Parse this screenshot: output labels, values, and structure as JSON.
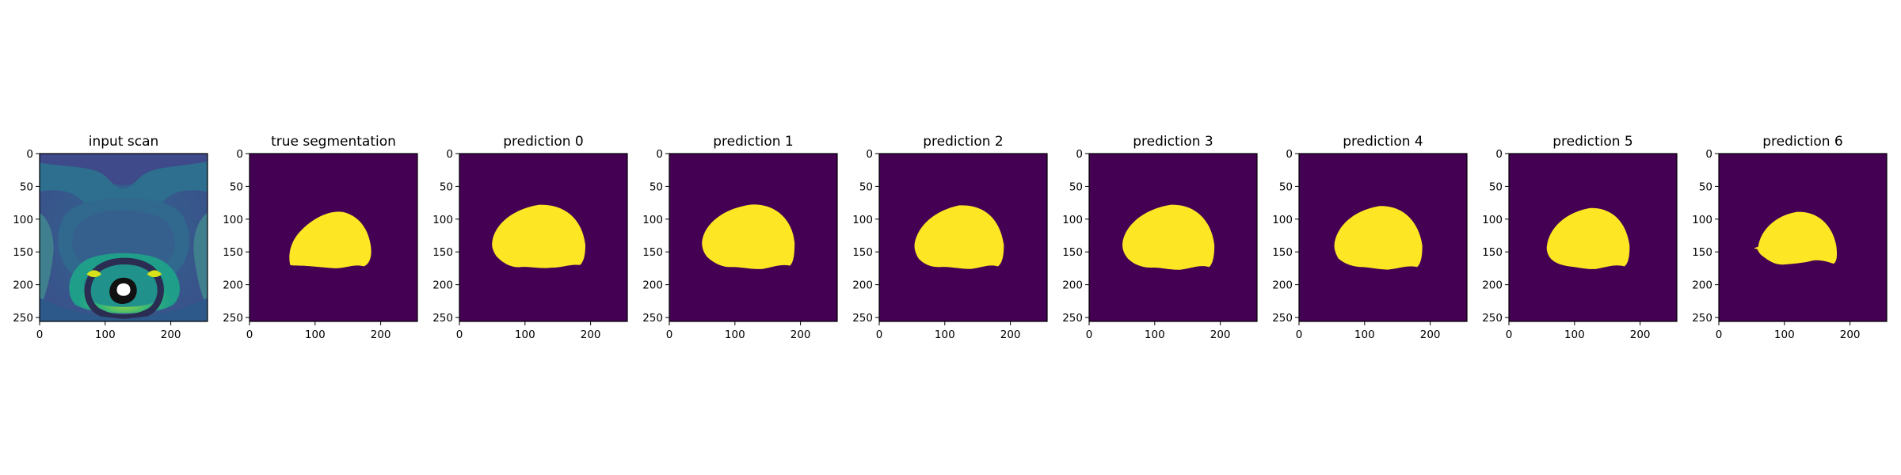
{
  "figure": {
    "panels": [
      {
        "id": "input",
        "title": "input scan",
        "kind": "scan"
      },
      {
        "id": "truth",
        "title": "true segmentation",
        "kind": "mask",
        "variant": 0
      },
      {
        "id": "p0",
        "title": "prediction 0",
        "kind": "mask",
        "variant": 1
      },
      {
        "id": "p1",
        "title": "prediction 1",
        "kind": "mask",
        "variant": 2
      },
      {
        "id": "p2",
        "title": "prediction 2",
        "kind": "mask",
        "variant": 3
      },
      {
        "id": "p3",
        "title": "prediction 3",
        "kind": "mask",
        "variant": 4
      },
      {
        "id": "p4",
        "title": "prediction 4",
        "kind": "mask",
        "variant": 5
      },
      {
        "id": "p5",
        "title": "prediction 5",
        "kind": "mask",
        "variant": 6
      },
      {
        "id": "p6",
        "title": "prediction 6",
        "kind": "mask",
        "variant": 7
      }
    ],
    "axes": {
      "x_ticks": [
        "0",
        "100",
        "200"
      ],
      "y_ticks": [
        "0",
        "50",
        "100",
        "150",
        "200",
        "250"
      ],
      "x_tick_values": [
        0,
        100,
        200
      ],
      "y_tick_values": [
        0,
        50,
        100,
        150,
        200,
        250
      ],
      "range": [
        0,
        256
      ]
    },
    "colors": {
      "background_mask": "#440154",
      "foreground_mask": "#fde725",
      "scan_dark": "#2e4f86",
      "scan_mid": "#22908c",
      "scan_bright": "#5dc863"
    }
  }
}
